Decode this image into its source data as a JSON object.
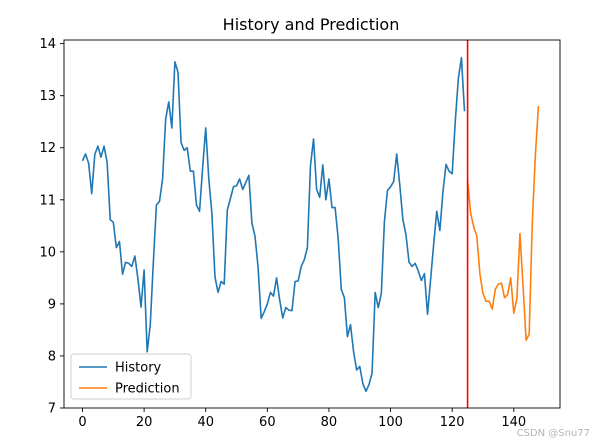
{
  "chart_data": {
    "type": "line",
    "title": "History and Prediction",
    "xlabel": "",
    "ylabel": "",
    "xlim": [
      -6,
      155
    ],
    "ylim": [
      7,
      14.07
    ],
    "x_ticks": [
      0,
      20,
      40,
      60,
      80,
      100,
      120,
      140
    ],
    "y_ticks": [
      7,
      8,
      9,
      10,
      11,
      12,
      13,
      14
    ],
    "legend_position": "lower-left",
    "grid": false,
    "vertical_line": {
      "x": 125,
      "color": "#ff0000"
    },
    "series": [
      {
        "name": "History",
        "color": "#1f77b4",
        "x_start": 0,
        "values": [
          11.75,
          11.88,
          11.7,
          11.12,
          11.87,
          12.03,
          11.82,
          12.03,
          11.72,
          10.62,
          10.57,
          10.08,
          10.2,
          9.57,
          9.8,
          9.78,
          9.72,
          9.92,
          9.48,
          8.94,
          9.65,
          8.08,
          8.6,
          9.8,
          10.9,
          10.97,
          11.4,
          12.55,
          12.88,
          12.38,
          13.65,
          13.45,
          12.1,
          11.95,
          12.0,
          11.55,
          11.55,
          10.9,
          10.78,
          11.62,
          12.38,
          11.4,
          10.74,
          9.52,
          9.22,
          9.43,
          9.38,
          10.8,
          11.02,
          11.25,
          11.27,
          11.4,
          11.2,
          11.33,
          11.47,
          10.55,
          10.3,
          9.7,
          8.72,
          8.85,
          9.0,
          9.22,
          9.15,
          9.5,
          9.08,
          8.73,
          8.93,
          8.88,
          8.87,
          9.43,
          9.44,
          9.72,
          9.85,
          10.08,
          11.65,
          12.17,
          11.2,
          11.05,
          11.67,
          11.0,
          11.4,
          10.85,
          10.85,
          10.25,
          9.28,
          9.12,
          8.37,
          8.6,
          8.08,
          7.73,
          7.8,
          7.47,
          7.32,
          7.45,
          7.67,
          9.22,
          8.93,
          9.2,
          10.58,
          11.18,
          11.25,
          11.35,
          11.88,
          11.28,
          10.62,
          10.33,
          9.8,
          9.72,
          9.78,
          9.63,
          9.45,
          9.58,
          8.8,
          9.47,
          10.15,
          10.78,
          10.41,
          11.15,
          11.68,
          11.55,
          11.5,
          12.5,
          13.33,
          13.73,
          12.7
        ]
      },
      {
        "name": "Prediction",
        "color": "#ff7f0e",
        "x_start": 125,
        "values": [
          11.38,
          10.74,
          10.48,
          10.3,
          9.58,
          9.2,
          9.05,
          9.05,
          8.9,
          9.28,
          9.38,
          9.4,
          9.12,
          9.18,
          9.5,
          8.82,
          9.1,
          10.35,
          9.35,
          8.3,
          8.42,
          10.55,
          11.85,
          12.8
        ]
      }
    ]
  },
  "watermark": "CSDN @Snu77"
}
